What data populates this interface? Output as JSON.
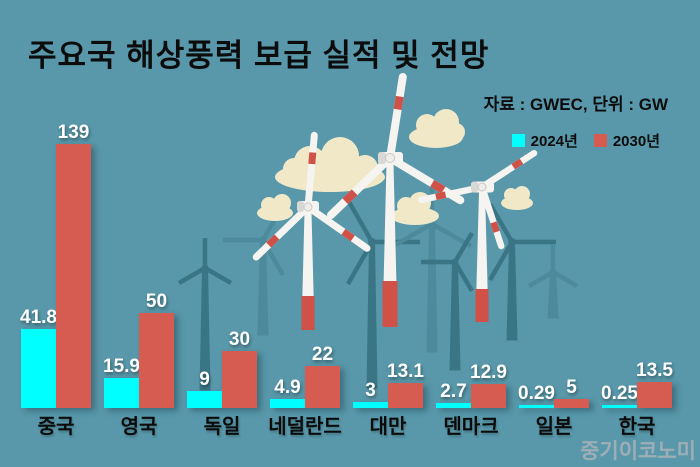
{
  "title": "주요국 해상풍력 보급 실적 및 전망",
  "source_note": "자료 : GWEC, 단위 : GW",
  "watermark": "중기이코노미",
  "colors": {
    "background": "#5898aa",
    "bar_2024": "#00ffff",
    "bar_2030": "#d65c52",
    "title_text": "#0c0c0c",
    "value_text": "#ffffff",
    "watermark_text": "#a2b0b7"
  },
  "legend": {
    "items": [
      {
        "label": "2024년",
        "color": "#00ffff"
      },
      {
        "label": "2030년",
        "color": "#d65c52"
      }
    ]
  },
  "chart_data": {
    "type": "bar",
    "title": "주요국 해상풍력 보급 실적 및 전망",
    "source": "자료 : GWEC, 단위 : GW",
    "unit": "GW",
    "categories": [
      "중국",
      "영국",
      "독일",
      "네덜란드",
      "대만",
      "덴마크",
      "일본",
      "한국"
    ],
    "series": [
      {
        "name": "2024년",
        "color": "#00ffff",
        "values": [
          41.8,
          15.9,
          9,
          4.9,
          3,
          2.7,
          0.29,
          0.25
        ]
      },
      {
        "name": "2030년",
        "color": "#d65c52",
        "values": [
          139,
          50,
          30,
          22,
          13.1,
          12.9,
          5,
          13.5
        ]
      }
    ],
    "ylim": [
      0,
      139
    ],
    "grid": false,
    "axes_visible": false,
    "legend_position": "top-right",
    "value_labels": true
  }
}
